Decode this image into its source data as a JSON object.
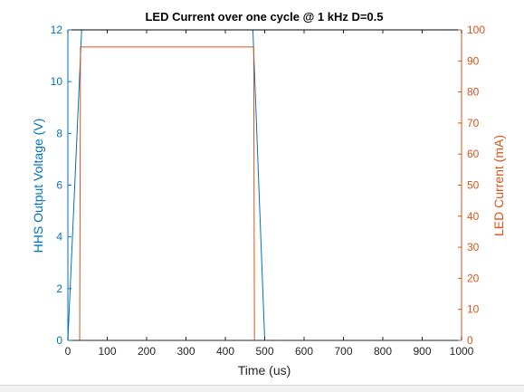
{
  "colors": {
    "left": "#0072BD",
    "right": "#D95319",
    "axis": "#262626",
    "frame": "#000000"
  },
  "chart_data": {
    "type": "line",
    "title": "LED Current over one cycle @ 1 kHz D=0.5",
    "xlabel": "Time (us)",
    "xlim": [
      0,
      1000
    ],
    "xticks": [
      0,
      100,
      200,
      300,
      400,
      500,
      600,
      700,
      800,
      900,
      1000
    ],
    "left_axis": {
      "label": "HHS Output Voltage (V)",
      "ylim": [
        0,
        12
      ],
      "ticks": [
        0,
        2,
        4,
        6,
        8,
        10,
        12
      ]
    },
    "right_axis": {
      "label": "LED Current (mA)",
      "ylim": [
        0,
        100
      ],
      "ticks": [
        0,
        10,
        20,
        30,
        40,
        50,
        60,
        70,
        80,
        90,
        100
      ]
    },
    "grid": false,
    "series": [
      {
        "axis": "left",
        "color": "#0072BD",
        "x": [
          0,
          35,
          470,
          500,
          1000
        ],
        "y": [
          0,
          12,
          12,
          0,
          0
        ]
      },
      {
        "axis": "right",
        "color": "#D95319",
        "x": [
          0,
          30,
          32,
          472,
          474,
          1000
        ],
        "y": [
          0,
          0,
          94.5,
          94.5,
          0,
          0
        ]
      }
    ]
  }
}
